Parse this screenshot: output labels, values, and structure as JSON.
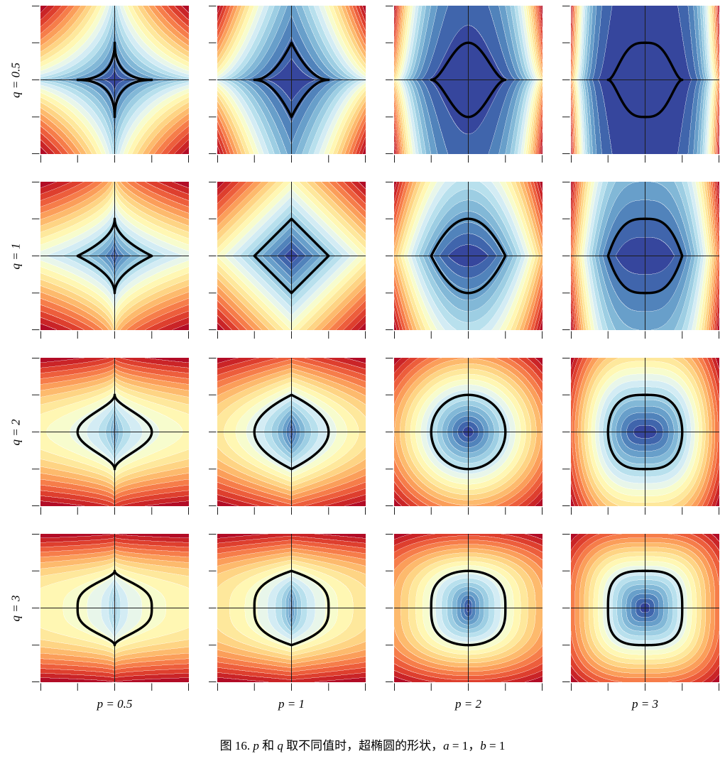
{
  "chart_data": {
    "type": "heatmap",
    "subtype": "filled-contour-grid",
    "field_function": "(|x/a|^p + |y/b|^q)^(1/q)",
    "curve_equation": "|x/a|^p + |y/b|^q = 1",
    "a": 1,
    "b": 1,
    "p_values": [
      0.5,
      1,
      2,
      3
    ],
    "q_values": [
      0.5,
      1,
      2,
      3
    ],
    "col_labels": [
      "p = 0.5",
      "p = 1",
      "p = 2",
      "p = 3"
    ],
    "row_labels": [
      "q = 0.5",
      "q = 1",
      "q = 2",
      "q = 3"
    ],
    "x_range": [
      -2,
      2
    ],
    "y_range": [
      -2,
      2
    ],
    "ticks": [
      -2,
      -1,
      0,
      1,
      2
    ],
    "n_bands": 20,
    "grid_on": false,
    "legend": "none",
    "colormap_name": "RdYlBu_r",
    "colormap_low_to_high": [
      "#313695",
      "#4575b4",
      "#74add1",
      "#abd9e9",
      "#e0f3f8",
      "#ffffbf",
      "#fee090",
      "#fdae61",
      "#f46d43",
      "#d73027",
      "#a50026"
    ],
    "contour_line_color": "#ffffff",
    "superellipse_color": "#000000",
    "axis_line_color": "#1c1c1c",
    "tick_color": "#1c1c1c",
    "background": "#ffffff"
  },
  "caption": {
    "segments": [
      {
        "t": "图 16. ",
        "i": false
      },
      {
        "t": "p",
        "i": true
      },
      {
        "t": " 和 ",
        "i": false
      },
      {
        "t": "q",
        "i": true
      },
      {
        "t": " 取不同值时，超椭圆的形状，",
        "i": false
      },
      {
        "t": "a",
        "i": true
      },
      {
        "t": " = 1，",
        "i": false
      },
      {
        "t": "b",
        "i": true
      },
      {
        "t": " = 1",
        "i": false
      }
    ],
    "plain": "图 16. p 和 q 取不同值时，超椭圆的形状，a = 1，b = 1"
  }
}
